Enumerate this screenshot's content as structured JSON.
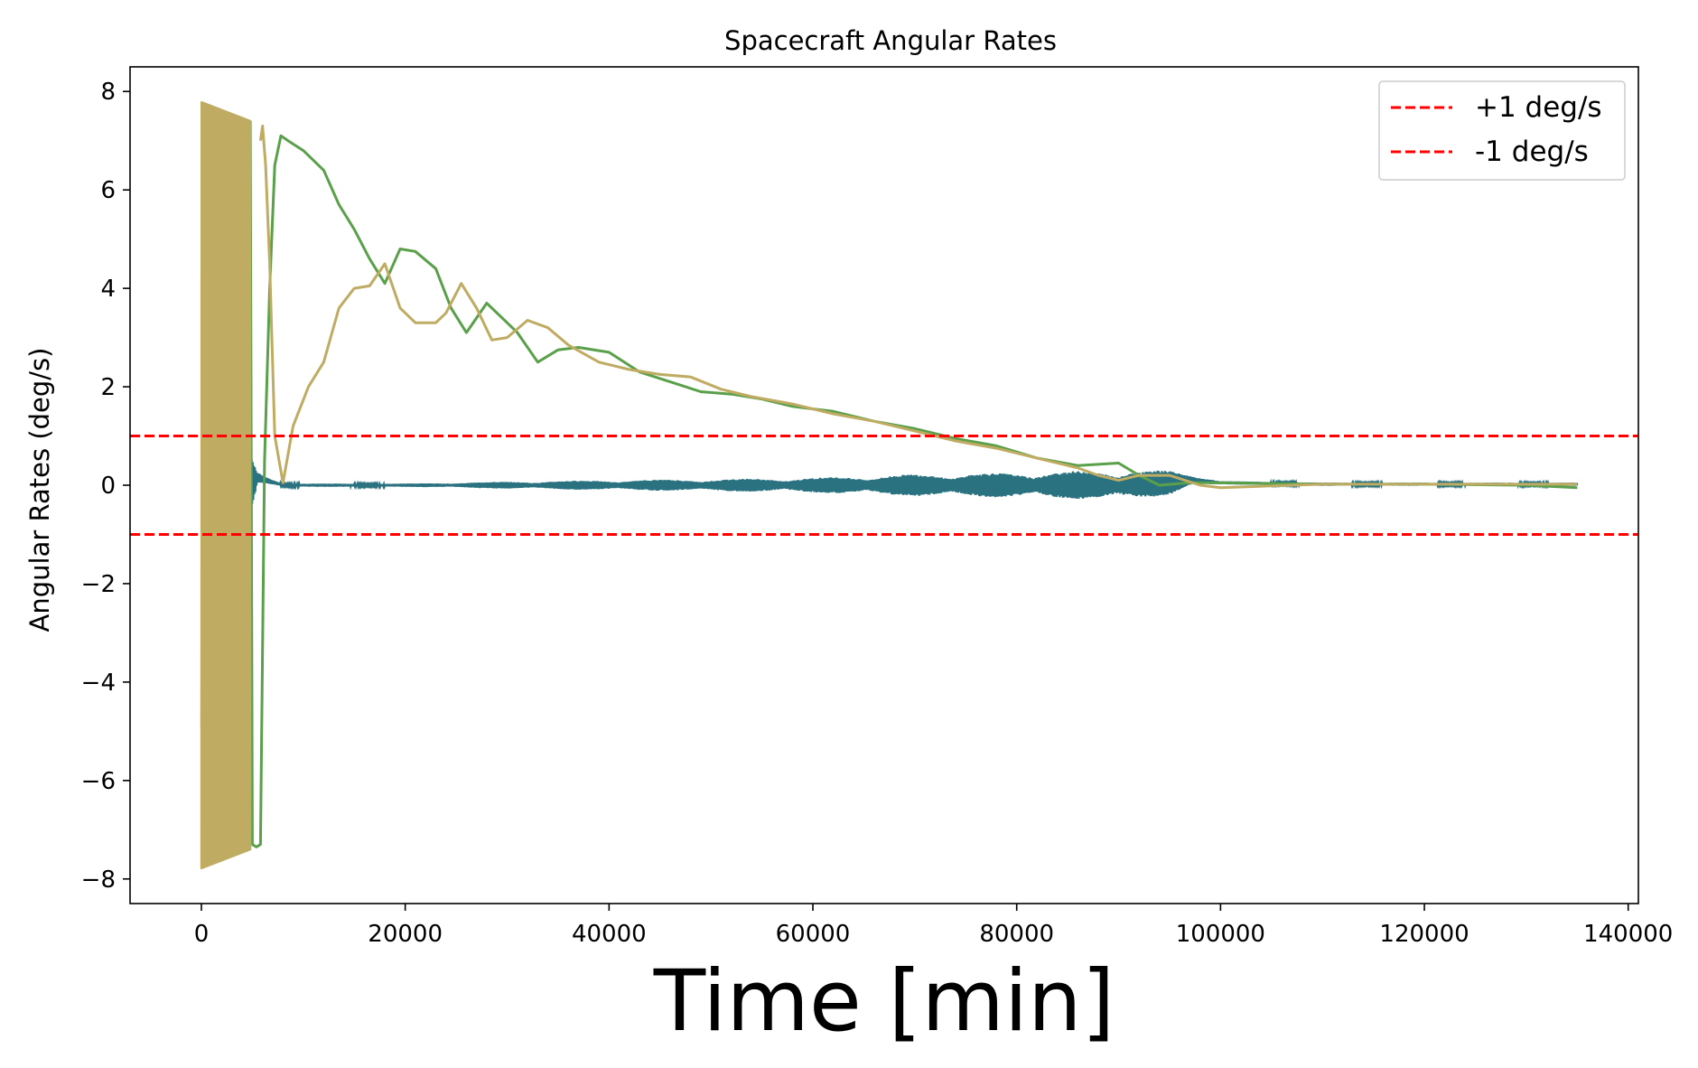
{
  "chart_data": {
    "type": "line",
    "title": "Spacecraft Angular Rates",
    "xlabel": "Time [min]",
    "ylabel": "Angular Rates (deg/s)",
    "xlim": [
      -7000,
      141000
    ],
    "ylim": [
      -8.5,
      8.5
    ],
    "x_ticks": [
      0,
      20000,
      40000,
      60000,
      80000,
      100000,
      120000,
      140000
    ],
    "x_tick_labels": [
      "0",
      "20000",
      "40000",
      "60000",
      "80000",
      "100000",
      "120000",
      "140000"
    ],
    "y_ticks": [
      -8,
      -6,
      -4,
      -2,
      0,
      2,
      4,
      6,
      8
    ],
    "y_tick_labels": [
      "−8",
      "−6",
      "−4",
      "−2",
      "0",
      "2",
      "4",
      "6",
      "8"
    ],
    "grid": false,
    "legend_position": "top-right",
    "legend": [
      {
        "label": "+1 deg/s",
        "color": "#ff0000",
        "style": "dashed"
      },
      {
        "label": "-1 deg/s",
        "color": "#ff0000",
        "style": "dashed"
      }
    ],
    "reference_lines": [
      {
        "y": 1,
        "color": "#ff0000",
        "style": "dashed"
      },
      {
        "y": -1,
        "color": "#ff0000",
        "style": "dashed"
      }
    ],
    "series": [
      {
        "color": "#2a7280",
        "kind": "oscillating",
        "x": [
          0,
          800,
          2000,
          3500,
          4800,
          5500,
          8000,
          20000,
          30000,
          40000,
          50000,
          60000,
          70000,
          80000,
          85000,
          90000,
          95000,
          97000,
          100000,
          110000,
          120000,
          135000
        ],
        "mean": [
          0,
          0,
          0,
          0,
          0,
          0.15,
          0.0,
          0.0,
          0.0,
          0.0,
          0.0,
          0.0,
          0.0,
          0.0,
          0.0,
          0.0,
          0.05,
          0.1,
          0.05,
          0.02,
          0.02,
          0.02
        ],
        "amp": [
          5.5,
          5.0,
          4.0,
          2.0,
          0.6,
          0.1,
          0.03,
          0.03,
          0.07,
          0.1,
          0.12,
          0.15,
          0.22,
          0.25,
          0.28,
          0.3,
          0.25,
          0.12,
          0.03,
          0.03,
          0.03,
          0.03
        ]
      },
      {
        "color": "#5aa04a",
        "kind": "line",
        "x": [
          4800,
          5000,
          5400,
          5800,
          6200,
          6700,
          7200,
          7800,
          8500,
          10000,
          12000,
          13500,
          15000,
          16500,
          18000,
          19500,
          21000,
          23000,
          24500,
          26000,
          28000,
          29500,
          31000,
          33000,
          35000,
          37000,
          40000,
          43000,
          46000,
          49000,
          52000,
          55000,
          58000,
          62000,
          66000,
          70000,
          74000,
          78000,
          82000,
          86000,
          90000,
          92000,
          94000,
          97000,
          100000,
          110000,
          120000,
          130000,
          135000
        ],
        "y": [
          7.4,
          -7.3,
          -7.35,
          -7.3,
          0.5,
          4.0,
          6.5,
          7.1,
          7.0,
          6.8,
          6.4,
          5.7,
          5.2,
          4.6,
          4.1,
          4.8,
          4.75,
          4.4,
          3.6,
          3.1,
          3.7,
          3.4,
          3.1,
          2.5,
          2.75,
          2.8,
          2.7,
          2.3,
          2.1,
          1.9,
          1.85,
          1.75,
          1.6,
          1.5,
          1.3,
          1.15,
          0.95,
          0.8,
          0.55,
          0.4,
          0.45,
          0.2,
          0.0,
          0.05,
          0.05,
          0.02,
          0.02,
          0.0,
          -0.05
        ]
      },
      {
        "color": "#bfab62",
        "kind": "line",
        "x": [
          5800,
          6000,
          6300,
          6700,
          7200,
          8000,
          9000,
          10500,
          12000,
          13500,
          15000,
          16500,
          18000,
          19500,
          21000,
          23000,
          24000,
          25500,
          27000,
          28500,
          30000,
          32000,
          34000,
          36000,
          39000,
          42000,
          45000,
          48000,
          51000,
          54000,
          58000,
          62000,
          66000,
          70000,
          74000,
          78000,
          82000,
          86000,
          88000,
          90000,
          92000,
          95000,
          98000,
          100000,
          110000,
          120000,
          135000
        ],
        "y": [
          7.0,
          7.3,
          6.5,
          4.5,
          1.0,
          0.05,
          1.2,
          2.0,
          2.5,
          3.6,
          4.0,
          4.05,
          4.5,
          3.6,
          3.3,
          3.3,
          3.5,
          4.1,
          3.6,
          2.95,
          3.0,
          3.35,
          3.2,
          2.85,
          2.5,
          2.35,
          2.25,
          2.2,
          1.95,
          1.8,
          1.65,
          1.45,
          1.3,
          1.1,
          0.9,
          0.75,
          0.55,
          0.35,
          0.2,
          0.1,
          0.2,
          0.2,
          0.0,
          -0.05,
          0.02,
          0.02,
          0.02
        ]
      },
      {
        "color": "#bfab62",
        "kind": "oscillating_block",
        "x_range": [
          0,
          4800
        ],
        "y_range": [
          -7.8,
          7.8
        ],
        "note_visible": false
      }
    ]
  }
}
